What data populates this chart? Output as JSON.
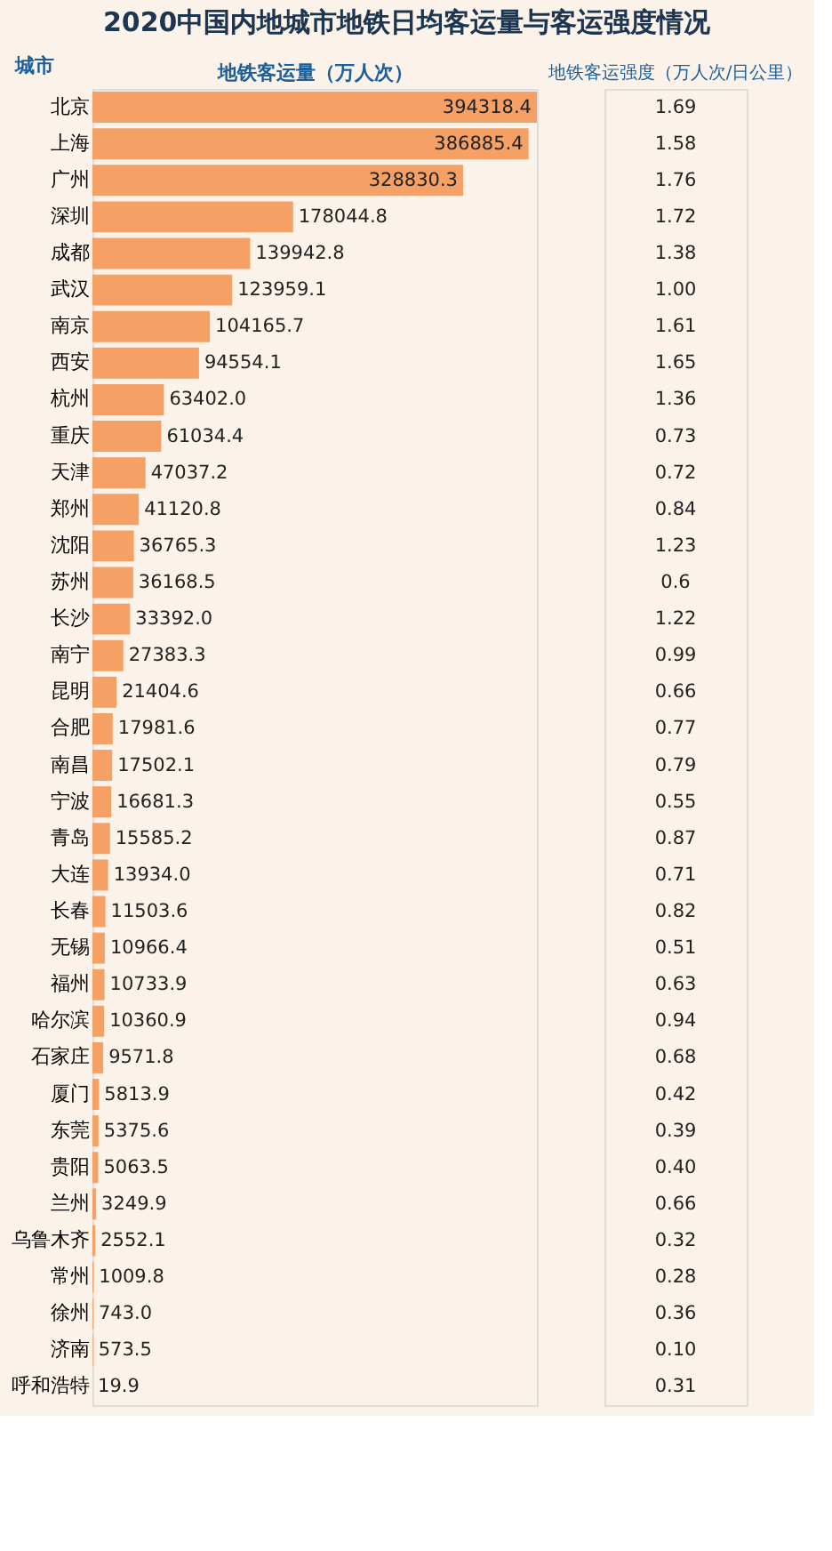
{
  "chart_data": [
    {
      "type": "bar",
      "orientation": "horizontal",
      "title": "2020中国内地城市地铁日均客运量与客运强度情况",
      "ylabel": "城市",
      "xlabel": "地铁客运量（万人次）",
      "value_labels": [
        "394318.4",
        "386885.4",
        "328830.3",
        "178044.8",
        "139942.8",
        "123959.1",
        "104165.7",
        "94554.1",
        "63402.0",
        "61034.4",
        "47037.2",
        "41120.8",
        "36765.3",
        "36168.5",
        "33392.0",
        "27383.3",
        "21404.6",
        "17981.6",
        "17502.1",
        "16681.3",
        "15585.2",
        "13934.0",
        "11503.6",
        "10966.4",
        "10733.9",
        "10360.9",
        "9571.8",
        "5813.9",
        "5375.6",
        "5063.5",
        "3249.9",
        "2552.1",
        "1009.8",
        "743.0",
        "573.5",
        "19.9"
      ],
      "color": "#f5a064",
      "categories": [
        "北京",
        "上海",
        "广州",
        "深圳",
        "成都",
        "武汉",
        "南京",
        "西安",
        "杭州",
        "重庆",
        "天津",
        "郑州",
        "沈阳",
        "苏州",
        "长沙",
        "南宁",
        "昆明",
        "合肥",
        "南昌",
        "宁波",
        "青岛",
        "大连",
        "长春",
        "无锡",
        "福州",
        "哈尔滨",
        "石家庄",
        "厦门",
        "东莞",
        "贵阳",
        "兰州",
        "乌鲁木齐",
        "常州",
        "徐州",
        "济南",
        "呼和浩特"
      ],
      "values": [
        394318.4,
        386885.4,
        328830.3,
        178044.8,
        139942.8,
        123959.1,
        104165.7,
        94554.1,
        63402.0,
        61034.4,
        47037.2,
        41120.8,
        36765.3,
        36168.5,
        33392.0,
        27383.3,
        21404.6,
        17981.6,
        17502.1,
        16681.3,
        15585.2,
        13934.0,
        11503.6,
        10966.4,
        10733.9,
        10360.9,
        9571.8,
        5813.9,
        5375.6,
        5063.5,
        3249.9,
        2552.1,
        1009.8,
        743.0,
        573.5,
        19.9
      ]
    },
    {
      "type": "other",
      "title": "地铁客运强度（万人次/日公里）",
      "values": [
        1.69,
        1.58,
        1.76,
        1.72,
        1.38,
        1.0,
        1.61,
        1.65,
        1.36,
        0.73,
        0.72,
        0.84,
        1.23,
        0.6,
        1.22,
        0.99,
        0.66,
        0.77,
        0.79,
        0.55,
        0.87,
        0.71,
        0.82,
        0.51,
        0.63,
        0.94,
        0.68,
        0.42,
        0.39,
        0.4,
        0.66,
        0.32,
        0.28,
        0.36,
        0.1,
        0.31
      ],
      "value_labels": [
        "1.69",
        "1.58",
        "1.76",
        "1.72",
        "1.38",
        "1.00",
        "1.61",
        "1.65",
        "1.36",
        "0.73",
        "0.72",
        "0.84",
        "1.23",
        "0.6",
        "1.22",
        "0.99",
        "0.66",
        "0.77",
        "0.79",
        "0.55",
        "0.87",
        "0.71",
        "0.82",
        "0.51",
        "0.63",
        "0.94",
        "0.68",
        "0.42",
        "0.39",
        "0.40",
        "0.66",
        "0.32",
        "0.28",
        "0.36",
        "0.10",
        "0.31"
      ]
    }
  ]
}
